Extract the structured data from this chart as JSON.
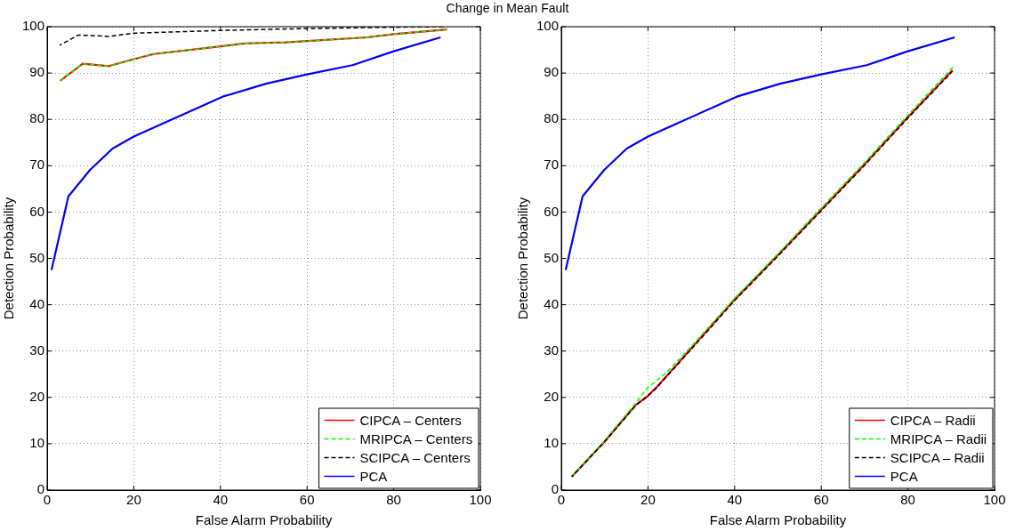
{
  "chart_data": [
    {
      "type": "line",
      "title": "Change in Mean Fault",
      "xlabel": "False Alarm Probability",
      "ylabel": "Detection Probability",
      "xlim": [
        0,
        100
      ],
      "xticks": [
        0,
        20,
        40,
        60,
        80,
        100
      ],
      "ylim": [
        0,
        100
      ],
      "yticks": [
        0,
        10,
        20,
        30,
        40,
        50,
        60,
        70,
        80,
        90,
        100
      ],
      "grid": true,
      "legend": "bottom right",
      "marker": "none",
      "series": [
        {
          "name": "CIPCA – Centers",
          "color": "#ff0000",
          "line_style": "solid",
          "x": [
            3,
            8.2,
            14.3,
            20,
            24.6,
            40.5,
            45.7,
            55,
            73.8,
            80,
            92.3
          ],
          "values": [
            88.3,
            92,
            91.5,
            93,
            94.1,
            95.8,
            96.4,
            96.6,
            97.7,
            98.4,
            99.4
          ]
        },
        {
          "name": "MRIPCA – Centers",
          "color": "#00ff00",
          "line_style": "dashed",
          "x": [
            3,
            8.2,
            14.3,
            20,
            24.6,
            40.5,
            45.7,
            55,
            73.8,
            80,
            92.3
          ],
          "values": [
            88.3,
            92,
            91.5,
            93,
            94.1,
            95.8,
            96.4,
            96.6,
            97.7,
            98.4,
            99.4
          ]
        },
        {
          "name": "SCIPCA – Centers",
          "color": "#000000",
          "line_style": "dashed",
          "x": [
            2.9,
            7.2,
            14.3,
            20,
            40.5,
            60,
            80,
            91.5
          ],
          "values": [
            96,
            98.2,
            97.9,
            98.6,
            99.2,
            99.6,
            99.9,
            100
          ]
        },
        {
          "name": "PCA",
          "color": "#0000ff",
          "line_style": "solid",
          "x": [
            1,
            4.9,
            9.9,
            15.1,
            20,
            40.5,
            50.5,
            60,
            70.5,
            80,
            90.8
          ],
          "values": [
            47.5,
            63.4,
            69.1,
            73.7,
            76.3,
            84.9,
            87.7,
            89.7,
            91.7,
            94.7,
            97.7
          ]
        }
      ]
    },
    {
      "type": "line",
      "xlabel": "False Alarm Probability",
      "ylabel": "Detection Probability",
      "xlim": [
        0,
        100
      ],
      "xticks": [
        0,
        20,
        40,
        60,
        80,
        100
      ],
      "ylim": [
        0,
        100
      ],
      "yticks": [
        0,
        10,
        20,
        30,
        40,
        50,
        60,
        70,
        80,
        90,
        100
      ],
      "grid": true,
      "legend": "bottom right",
      "marker": "none",
      "series": [
        {
          "name": "CIPCA – Radii",
          "color": "#ff0000",
          "line_style": "solid",
          "x": [
            2.4,
            10,
            17.2,
            19.8,
            22.1,
            30,
            39.9,
            50,
            59.9,
            69.8,
            79.6,
            90.3
          ],
          "values": [
            2.9,
            10.5,
            18.4,
            20.2,
            22.3,
            30.6,
            41,
            50.7,
            60.4,
            70.1,
            80.1,
            90.6
          ]
        },
        {
          "name": "MRIPCA – Radii",
          "color": "#00ff00",
          "line_style": "dashed",
          "x": [
            2.4,
            10,
            17.2,
            19.8,
            24.2,
            30,
            39.9,
            50,
            59.9,
            69.8,
            79.6,
            90.7
          ],
          "values": [
            3,
            10.7,
            18.8,
            22,
            25.3,
            31,
            41.3,
            51,
            60.8,
            70.5,
            80.5,
            91.6
          ]
        },
        {
          "name": "SCIPCA – Radii",
          "color": "#000000",
          "line_style": "dashed",
          "x": [
            2.4,
            10,
            17.2,
            19.8,
            22.1,
            30,
            39.9,
            50,
            59.9,
            69.8,
            79.6,
            90.3
          ],
          "values": [
            2.9,
            10.4,
            18.3,
            20.1,
            22.2,
            30.4,
            40.8,
            50.5,
            60.2,
            69.9,
            79.9,
            90.4
          ]
        },
        {
          "name": "PCA",
          "color": "#0000ff",
          "line_style": "solid",
          "x": [
            1,
            4.9,
            9.9,
            15.1,
            20,
            40.5,
            50.5,
            60,
            70.5,
            80,
            90.8
          ],
          "values": [
            47.5,
            63.4,
            69.1,
            73.7,
            76.3,
            84.9,
            87.7,
            89.7,
            91.7,
            94.7,
            97.7
          ]
        }
      ]
    }
  ]
}
